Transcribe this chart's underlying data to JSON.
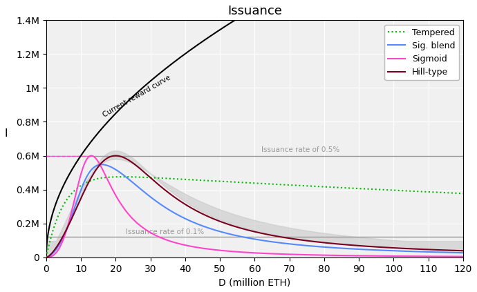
{
  "title": "Issuance",
  "xlabel": "D (million ETH)",
  "ylabel": "I",
  "xlim": [
    0,
    120
  ],
  "ylim": [
    0,
    1400000
  ],
  "yticks": [
    0,
    200000,
    400000,
    600000,
    800000,
    1000000,
    1200000,
    1400000
  ],
  "ytick_labels": [
    "0",
    "0.2M",
    "0.4M",
    "0.6M",
    "0.8M",
    "1M",
    "1.2M",
    "1.4M"
  ],
  "xticks": [
    0,
    10,
    20,
    30,
    40,
    50,
    60,
    70,
    80,
    90,
    100,
    110,
    120
  ],
  "issuance_05pct": 600000,
  "issuance_01pct": 120000,
  "issuance_05pct_label": "Issuance rate of 0.5%",
  "issuance_01pct_label": "Issuance rate of 0.1%",
  "current_curve_label": "Current reward curve",
  "legend_entries": [
    "Tempered",
    "Sig. blend",
    "Sigmoid",
    "Hill-type"
  ],
  "tempered_color": "#00bb00",
  "sig_blend_color": "#5588ff",
  "sigmoid_color": "#ff44cc",
  "hill_color": "#7a0020",
  "current_color": "#000000",
  "hline_color": "#999999",
  "shade_color": "#c8c8c8",
  "background_color": "#f0f0f0"
}
